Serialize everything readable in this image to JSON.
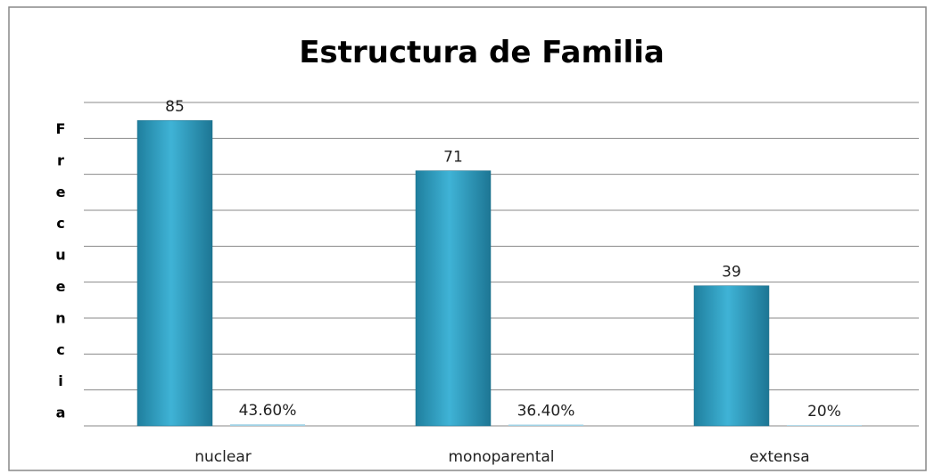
{
  "chart_data": {
    "type": "bar",
    "title": "Estructura de Familia",
    "y_label": "Frecuencia",
    "categories": [
      "nuclear",
      "monoparental",
      "extensa"
    ],
    "series": [
      {
        "color": "#31a3c6",
        "values": [
          85,
          71,
          39
        ]
      },
      {
        "color": "#9fd2e6",
        "values": [
          0.436,
          0.364,
          0.2
        ],
        "value_labels": [
          "43.60%",
          "36.40%",
          "20%"
        ]
      }
    ],
    "ylim": [
      0,
      90
    ],
    "yticks": [
      0,
      10,
      20,
      30,
      40,
      50,
      60,
      70,
      80,
      90
    ],
    "grid": true
  }
}
